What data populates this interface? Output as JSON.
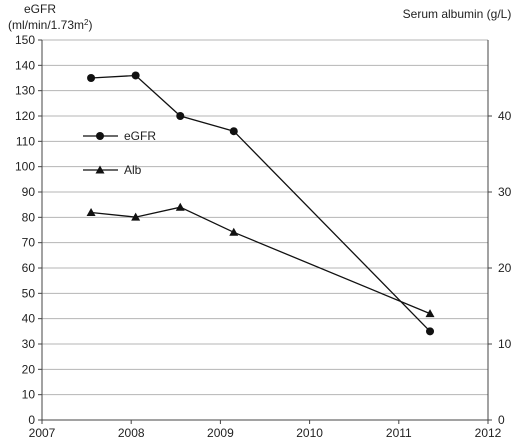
{
  "chart_data": {
    "type": "line",
    "left_axis_label_line1": "eGFR",
    "left_axis_label_line2_prefix": "(ml/min/1.73m",
    "left_axis_label_line2_sup": "2",
    "left_axis_label_line2_suffix": ")",
    "right_axis_label": "Serum albumin (g/L)",
    "xlim": [
      2007,
      2012
    ],
    "x_ticks": [
      2007,
      2008,
      2009,
      2010,
      2011,
      2012
    ],
    "ylim_left": [
      0,
      150
    ],
    "y_ticks_left": [
      0,
      10,
      20,
      30,
      40,
      50,
      60,
      70,
      80,
      90,
      100,
      110,
      120,
      130,
      140,
      150
    ],
    "ylim_right": [
      0,
      50
    ],
    "y_ticks_right": [
      0,
      10,
      20,
      30,
      40
    ],
    "grid": "horizontal",
    "legend_position": "center-left",
    "series": [
      {
        "name": "eGFR",
        "axis": "left",
        "marker": "circle",
        "x": [
          2007.55,
          2008.05,
          2008.55,
          2009.15,
          2011.35
        ],
        "y": [
          135,
          136,
          120,
          114,
          35
        ]
      },
      {
        "name": "Alb",
        "axis": "right",
        "marker": "triangle",
        "x": [
          2007.55,
          2008.05,
          2008.55,
          2009.15,
          2011.35
        ],
        "y": [
          27.3,
          26.7,
          28,
          24.7,
          14
        ]
      }
    ]
  }
}
